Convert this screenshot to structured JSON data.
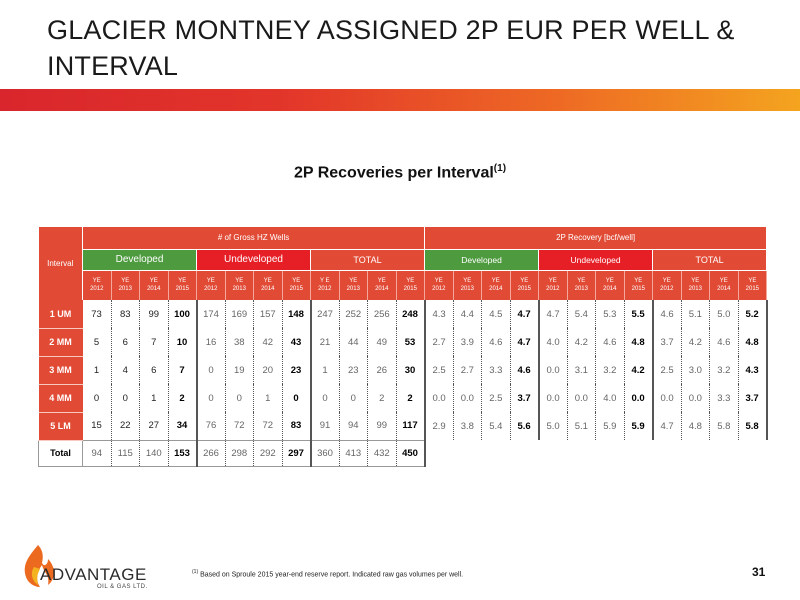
{
  "page": {
    "title": "GLACIER MONTNEY ASSIGNED 2P EUR PER WELL & INTERVAL",
    "subtitle": "2P Recoveries per Interval",
    "subtitle_sup": "(1)",
    "footnote_sup": "(1)",
    "footnote": "Based on Sproule 2015 year-end reserve report. Indicated raw gas volumes per well.",
    "page_number": "31",
    "logo_text": "ADVANTAGE",
    "logo_sub": "OIL & GAS LTD.",
    "colors": {
      "header_red": "#e14b36",
      "developed_green": "#4d9a3f",
      "undeveloped_red": "#e61e26",
      "banner_start": "#d9262c",
      "banner_end": "#f4a41f"
    }
  },
  "table": {
    "interval_header": "Interval",
    "group1": "# of Gross HZ Wells",
    "group2": "2P Recovery [bcf/well]",
    "sub_developed": "Developed",
    "sub_undeveloped": "Undeveloped",
    "sub_total": "TOTAL",
    "years": [
      [
        "YE",
        "2012"
      ],
      [
        "YE",
        "2013"
      ],
      [
        "YE",
        "2014"
      ],
      [
        "YE",
        "2015"
      ],
      [
        "YE",
        "2012"
      ],
      [
        "YE",
        "2013"
      ],
      [
        "YE",
        "2014"
      ],
      [
        "YE",
        "2015"
      ],
      [
        "Y E",
        "2012"
      ],
      [
        "YE",
        "2013"
      ],
      [
        "YE",
        "2014"
      ],
      [
        "YE",
        "2015"
      ],
      [
        "YE",
        "2012"
      ],
      [
        "YE",
        "2013"
      ],
      [
        "YE",
        "2014"
      ],
      [
        "YE",
        "2015"
      ],
      [
        "YE",
        "2012"
      ],
      [
        "YE",
        "2013"
      ],
      [
        "YE",
        "2014"
      ],
      [
        "YE",
        "2015"
      ],
      [
        "YE",
        "2012"
      ],
      [
        "YE",
        "2013"
      ],
      [
        "YE",
        "2014"
      ],
      [
        "YE",
        "2015"
      ]
    ],
    "rows": [
      {
        "label": "1 UM",
        "values": [
          "73",
          "83",
          "99",
          "100",
          "174",
          "169",
          "157",
          "148",
          "247",
          "252",
          "256",
          "248",
          "4.3",
          "4.4",
          "4.5",
          "4.7",
          "4.7",
          "5.4",
          "5.3",
          "5.5",
          "4.6",
          "5.1",
          "5.0",
          "5.2"
        ]
      },
      {
        "label": "2 MM",
        "values": [
          "5",
          "6",
          "7",
          "10",
          "16",
          "38",
          "42",
          "43",
          "21",
          "44",
          "49",
          "53",
          "2.7",
          "3.9",
          "4.6",
          "4.7",
          "4.0",
          "4.2",
          "4.6",
          "4.8",
          "3.7",
          "4.2",
          "4.6",
          "4.8"
        ]
      },
      {
        "label": "3 MM",
        "values": [
          "1",
          "4",
          "6",
          "7",
          "0",
          "19",
          "20",
          "23",
          "1",
          "23",
          "26",
          "30",
          "2.5",
          "2.7",
          "3.3",
          "4.6",
          "0.0",
          "3.1",
          "3.2",
          "4.2",
          "2.5",
          "3.0",
          "3.2",
          "4.3"
        ]
      },
      {
        "label": "4 MM",
        "values": [
          "0",
          "0",
          "1",
          "2",
          "0",
          "0",
          "1",
          "0",
          "0",
          "0",
          "2",
          "2",
          "0.0",
          "0.0",
          "2.5",
          "3.7",
          "0.0",
          "0.0",
          "4.0",
          "0.0",
          "0.0",
          "0.0",
          "3.3",
          "3.7"
        ]
      },
      {
        "label": "5 LM",
        "values": [
          "15",
          "22",
          "27",
          "34",
          "76",
          "72",
          "72",
          "83",
          "91",
          "94",
          "99",
          "117",
          "2.9",
          "3.8",
          "5.4",
          "5.6",
          "5.0",
          "5.1",
          "5.9",
          "5.9",
          "4.7",
          "4.8",
          "5.8",
          "5.8"
        ]
      }
    ],
    "total_row": {
      "label": "Total",
      "values": [
        "94",
        "115",
        "140",
        "153",
        "266",
        "298",
        "292",
        "297",
        "360",
        "413",
        "432",
        "450"
      ]
    }
  }
}
